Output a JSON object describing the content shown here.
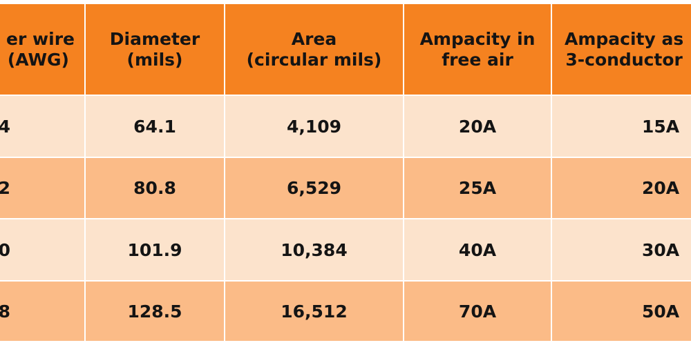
{
  "table": {
    "headers": [
      {
        "line1": "er wire",
        "line2": "(AWG)"
      },
      {
        "line1": "Diameter",
        "line2": "(mils)"
      },
      {
        "line1": "Area",
        "line2": "(circular mils)"
      },
      {
        "line1": "Ampacity in",
        "line2": "free air"
      },
      {
        "line1": "Ampacity as",
        "line2": "3-conductor"
      }
    ],
    "rows": [
      [
        "4",
        "64.1",
        "4,109",
        "20A",
        "15A"
      ],
      [
        "2",
        "80.8",
        "6,529",
        "25A",
        "20A"
      ],
      [
        "0",
        "101.9",
        "10,384",
        "40A",
        "30A"
      ],
      [
        "8",
        "128.5",
        "16,512",
        "70A",
        "50A"
      ]
    ],
    "colors": {
      "header": "#F58220",
      "row_light": "#FCE3CC",
      "row_dark": "#FBBB87",
      "text": "#141414"
    }
  }
}
